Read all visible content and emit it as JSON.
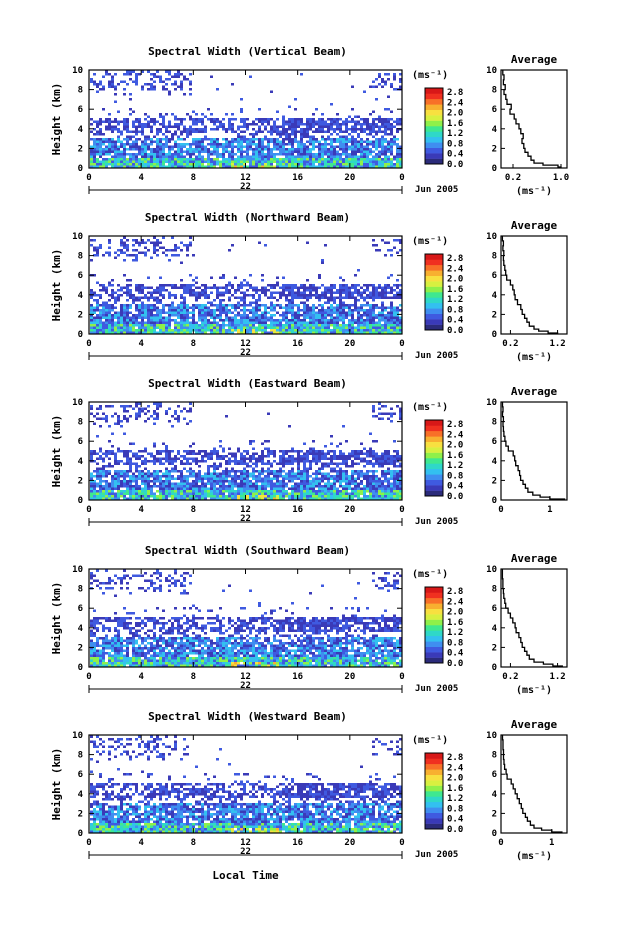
{
  "colorbar": {
    "unit_label": "(ms⁻¹)",
    "ticks": [
      "2.8",
      "2.4",
      "2.0",
      "1.6",
      "1.2",
      "0.8",
      "0.4",
      "0.0"
    ],
    "colors": [
      "#2b2b7a",
      "#3a3ab8",
      "#3f5ae0",
      "#3f8ef0",
      "#33c0f0",
      "#2fd8c8",
      "#3fe890",
      "#8ff04a",
      "#d8f040",
      "#f8e040",
      "#f8b030",
      "#f87028",
      "#f03020",
      "#d81818"
    ]
  },
  "date_label": "Jun 2005",
  "day_label": "22",
  "x_axis_label": "Local Time",
  "chart_data": [
    {
      "type": "heatmap",
      "title": "Spectral Width (Vertical Beam)",
      "ylabel": "Height (km)",
      "xticks": [
        "0",
        "4",
        "8",
        "12",
        "16",
        "20",
        "0"
      ],
      "yticks": [
        "0",
        "2",
        "4",
        "6",
        "8",
        "10"
      ],
      "xlim": [
        0,
        24
      ],
      "ylim": [
        0,
        10
      ],
      "average": {
        "title": "Average",
        "xlabel": "(ms⁻¹)",
        "xticks": [
          "0.2",
          "1.0"
        ],
        "xtick_values": [
          0.2,
          1.0
        ],
        "xlim": [
          0,
          1.1
        ],
        "ylim": [
          0,
          10
        ],
        "yticks": [
          "0",
          "2",
          "4",
          "6",
          "8",
          "10"
        ],
        "profile": [
          [
            1.0,
            0.1
          ],
          [
            0.95,
            0.3
          ],
          [
            0.7,
            0.5
          ],
          [
            0.55,
            0.8
          ],
          [
            0.5,
            1.2
          ],
          [
            0.45,
            1.6
          ],
          [
            0.4,
            2.0
          ],
          [
            0.38,
            2.5
          ],
          [
            0.35,
            3.0
          ],
          [
            0.37,
            3.5
          ],
          [
            0.33,
            4.0
          ],
          [
            0.3,
            4.5
          ],
          [
            0.25,
            5.0
          ],
          [
            0.22,
            5.5
          ],
          [
            0.15,
            6.0
          ],
          [
            0.17,
            6.5
          ],
          [
            0.1,
            7.0
          ],
          [
            0.08,
            7.5
          ],
          [
            0.05,
            8.0
          ],
          [
            0.07,
            8.5
          ],
          [
            0.04,
            9.0
          ],
          [
            0.05,
            9.5
          ],
          [
            0.03,
            10.0
          ]
        ]
      }
    },
    {
      "type": "heatmap",
      "title": "Spectral Width (Northward Beam)",
      "ylabel": "Height (km)",
      "xticks": [
        "0",
        "4",
        "8",
        "12",
        "16",
        "20",
        "0"
      ],
      "yticks": [
        "0",
        "2",
        "4",
        "6",
        "8",
        "10"
      ],
      "xlim": [
        0,
        24
      ],
      "ylim": [
        0,
        10
      ],
      "average": {
        "title": "Average",
        "xlabel": "(ms⁻¹)",
        "xticks": [
          "0.2",
          "1.2"
        ],
        "xtick_values": [
          0.2,
          1.2
        ],
        "xlim": [
          0,
          1.4
        ],
        "ylim": [
          0,
          10
        ],
        "yticks": [
          "0",
          "2",
          "4",
          "6",
          "8",
          "10"
        ],
        "profile": [
          [
            1.2,
            0.1
          ],
          [
            1.0,
            0.3
          ],
          [
            0.8,
            0.5
          ],
          [
            0.7,
            0.8
          ],
          [
            0.6,
            1.2
          ],
          [
            0.55,
            1.6
          ],
          [
            0.5,
            2.0
          ],
          [
            0.45,
            2.5
          ],
          [
            0.42,
            3.0
          ],
          [
            0.35,
            3.5
          ],
          [
            0.3,
            4.0
          ],
          [
            0.28,
            4.5
          ],
          [
            0.25,
            5.0
          ],
          [
            0.2,
            5.5
          ],
          [
            0.12,
            6.0
          ],
          [
            0.1,
            6.5
          ],
          [
            0.08,
            7.0
          ],
          [
            0.06,
            7.5
          ],
          [
            0.05,
            8.0
          ],
          [
            0.06,
            8.5
          ],
          [
            0.04,
            9.0
          ],
          [
            0.05,
            9.5
          ],
          [
            0.03,
            10.0
          ]
        ]
      }
    },
    {
      "type": "heatmap",
      "title": "Spectral Width (Eastward Beam)",
      "ylabel": "Height (km)",
      "xticks": [
        "0",
        "4",
        "8",
        "12",
        "16",
        "20",
        "0"
      ],
      "yticks": [
        "0",
        "2",
        "4",
        "6",
        "8",
        "10"
      ],
      "xlim": [
        0,
        24
      ],
      "ylim": [
        0,
        10
      ],
      "average": {
        "title": "Average",
        "xlabel": "",
        "xticks": [
          "0",
          "1"
        ],
        "xtick_values": [
          0,
          1
        ],
        "xlim": [
          0,
          1.35
        ],
        "ylim": [
          0,
          10
        ],
        "yticks": [
          "0",
          "2",
          "4",
          "6",
          "8",
          "10"
        ],
        "profile": [
          [
            1.3,
            0.1
          ],
          [
            1.0,
            0.3
          ],
          [
            0.8,
            0.5
          ],
          [
            0.65,
            0.8
          ],
          [
            0.55,
            1.2
          ],
          [
            0.5,
            1.6
          ],
          [
            0.45,
            2.0
          ],
          [
            0.4,
            2.5
          ],
          [
            0.38,
            3.0
          ],
          [
            0.35,
            3.5
          ],
          [
            0.3,
            4.0
          ],
          [
            0.28,
            4.5
          ],
          [
            0.25,
            5.0
          ],
          [
            0.15,
            5.5
          ],
          [
            0.1,
            6.0
          ],
          [
            0.08,
            6.5
          ],
          [
            0.06,
            7.0
          ],
          [
            0.05,
            7.5
          ],
          [
            0.04,
            8.0
          ],
          [
            0.05,
            8.5
          ],
          [
            0.03,
            9.0
          ],
          [
            0.04,
            9.5
          ],
          [
            0.03,
            10.0
          ]
        ]
      }
    },
    {
      "type": "heatmap",
      "title": "Spectral Width (Southward Beam)",
      "ylabel": "Height (km)",
      "xticks": [
        "0",
        "4",
        "8",
        "12",
        "16",
        "20",
        "0"
      ],
      "yticks": [
        "0",
        "2",
        "4",
        "6",
        "8",
        "10"
      ],
      "xlim": [
        0,
        24
      ],
      "ylim": [
        0,
        10
      ],
      "average": {
        "title": "Average",
        "xlabel": "(ms⁻¹)",
        "xticks": [
          "0.2",
          "1.2"
        ],
        "xtick_values": [
          0.2,
          1.2
        ],
        "xlim": [
          0,
          1.4
        ],
        "ylim": [
          0,
          10
        ],
        "yticks": [
          "0",
          "2",
          "4",
          "6",
          "8",
          "10"
        ],
        "profile": [
          [
            1.3,
            0.1
          ],
          [
            1.1,
            0.3
          ],
          [
            0.9,
            0.5
          ],
          [
            0.7,
            0.8
          ],
          [
            0.6,
            1.2
          ],
          [
            0.55,
            1.6
          ],
          [
            0.5,
            2.0
          ],
          [
            0.45,
            2.5
          ],
          [
            0.42,
            3.0
          ],
          [
            0.38,
            3.5
          ],
          [
            0.32,
            4.0
          ],
          [
            0.3,
            4.5
          ],
          [
            0.25,
            5.0
          ],
          [
            0.2,
            5.5
          ],
          [
            0.15,
            6.0
          ],
          [
            0.1,
            6.5
          ],
          [
            0.08,
            7.0
          ],
          [
            0.06,
            7.5
          ],
          [
            0.05,
            8.0
          ],
          [
            0.04,
            8.5
          ],
          [
            0.04,
            9.0
          ],
          [
            0.03,
            9.5
          ],
          [
            0.03,
            10.0
          ]
        ]
      }
    },
    {
      "type": "heatmap",
      "title": "Spectral Width (Westward Beam)",
      "ylabel": "Height (km)",
      "xticks": [
        "0",
        "4",
        "8",
        "12",
        "16",
        "20",
        "0"
      ],
      "yticks": [
        "0",
        "2",
        "4",
        "6",
        "8",
        "10"
      ],
      "xlim": [
        0,
        24
      ],
      "ylim": [
        0,
        10
      ],
      "average": {
        "title": "Average",
        "xlabel": "(ms⁻¹)",
        "xticks": [
          "0",
          "1"
        ],
        "xtick_values": [
          0,
          1
        ],
        "xlim": [
          0,
          1.3
        ],
        "ylim": [
          0,
          10
        ],
        "yticks": [
          "0",
          "2",
          "4",
          "6",
          "8",
          "10"
        ],
        "profile": [
          [
            1.2,
            0.1
          ],
          [
            1.0,
            0.3
          ],
          [
            0.8,
            0.5
          ],
          [
            0.65,
            0.8
          ],
          [
            0.58,
            1.2
          ],
          [
            0.52,
            1.6
          ],
          [
            0.48,
            2.0
          ],
          [
            0.43,
            2.5
          ],
          [
            0.4,
            3.0
          ],
          [
            0.36,
            3.5
          ],
          [
            0.32,
            4.0
          ],
          [
            0.28,
            4.5
          ],
          [
            0.24,
            5.0
          ],
          [
            0.2,
            5.5
          ],
          [
            0.12,
            6.0
          ],
          [
            0.1,
            6.5
          ],
          [
            0.07,
            7.0
          ],
          [
            0.06,
            7.5
          ],
          [
            0.05,
            8.0
          ],
          [
            0.05,
            8.5
          ],
          [
            0.04,
            9.0
          ],
          [
            0.04,
            9.5
          ],
          [
            0.03,
            10.0
          ]
        ]
      }
    }
  ]
}
